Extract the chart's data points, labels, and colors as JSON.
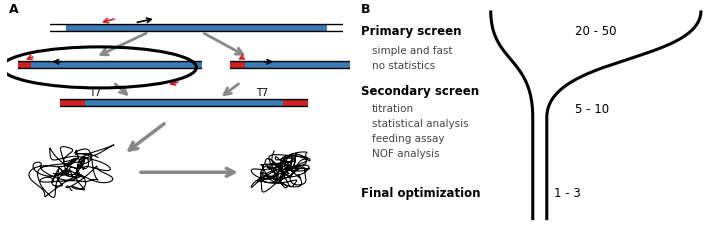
{
  "panel_A_label": "A",
  "panel_B_label": "B",
  "bg_color": "#ffffff",
  "black": "#000000",
  "gray": "#888888",
  "blue": "#3a7ab5",
  "red": "#cc2222",
  "primary_screen_label": "Primary screen",
  "primary_screen_sub": [
    "simple and fast",
    "no statistics"
  ],
  "primary_screen_range": "20 - 50",
  "secondary_screen_label": "Secondary screen",
  "secondary_screen_sub": [
    "titration",
    "statistical analysis",
    "feeding assay",
    "NOF analysis"
  ],
  "secondary_screen_range": "5 - 10",
  "final_opt_label": "Final optimization",
  "final_opt_range": "1 - 3",
  "T7_label": "T7",
  "figsize": [
    7.08,
    2.28
  ],
  "dpi": 100
}
